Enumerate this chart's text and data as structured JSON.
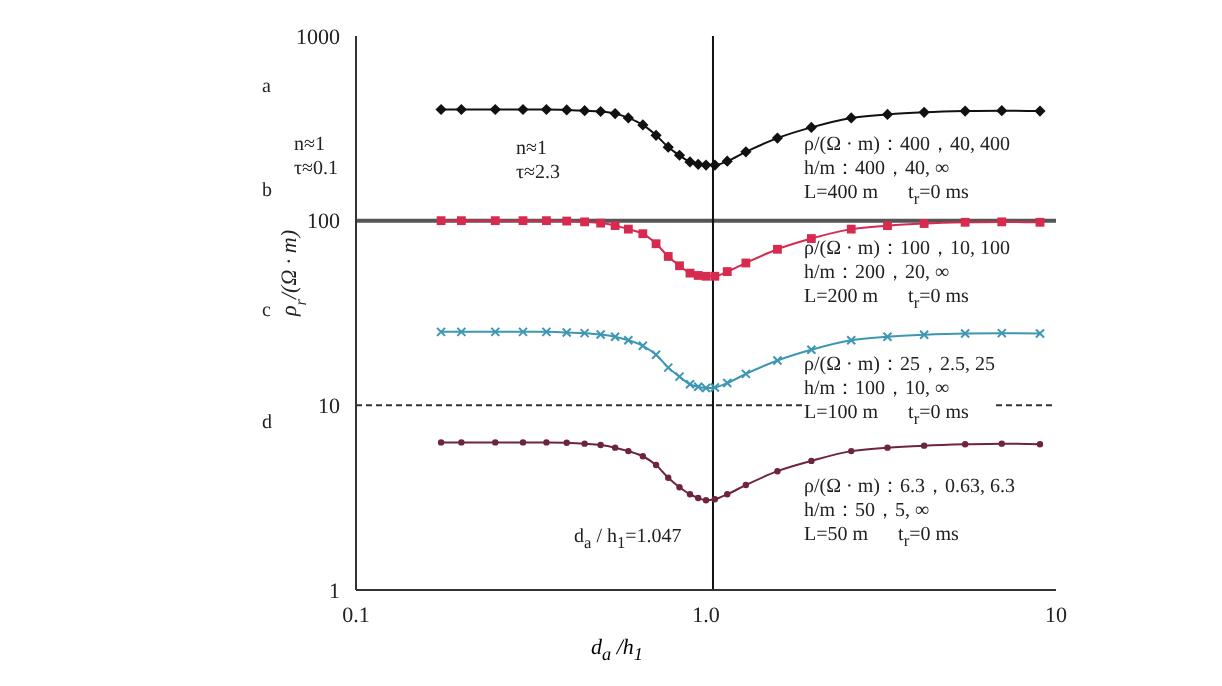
{
  "chart_data": {
    "type": "line",
    "xlabel": "d$_{a}$ /h$_{1}$",
    "ylabel": "ρ$_{r}$/(Ω · m)",
    "log": "xy",
    "xlim": [
      0.1,
      10
    ],
    "xticks": [
      0.1,
      {
        "value": 1,
        "label": "1.0"
      },
      10
    ],
    "ylim": [
      1,
      1000
    ],
    "yticks": [
      1,
      10,
      100,
      1000
    ],
    "legend": false,
    "x": [
      0.175,
      0.2,
      0.25,
      0.3,
      0.35,
      0.4,
      0.45,
      0.5,
      0.55,
      0.6,
      0.66,
      0.72,
      0.78,
      0.84,
      0.9,
      0.95,
      1.0,
      1.06,
      1.15,
      1.3,
      1.6,
      2.0,
      2.6,
      3.3,
      4.2,
      5.5,
      7,
      9
    ],
    "series": [
      {
        "color": "#111111",
        "marker": "diamond",
        "values": [
          400,
          400,
          400,
          400,
          400,
          398,
          394,
          390,
          380,
          360,
          330,
          290,
          250,
          226,
          208,
          202,
          200,
          200,
          210,
          236,
          280,
          320,
          360,
          376,
          386,
          392,
          394,
          392
        ]
      },
      {
        "color": "#d62a4e",
        "marker": "square",
        "values": [
          100,
          100,
          100,
          100,
          100,
          99.5,
          98.5,
          97,
          94,
          90,
          85,
          75,
          64,
          57,
          52,
          50.5,
          50,
          50,
          53,
          59,
          70,
          80,
          90,
          94,
          96.5,
          98,
          98.5,
          98
        ]
      },
      {
        "color": "#3d97b3",
        "marker": "cross",
        "values": [
          25,
          25,
          25,
          25,
          25,
          24.8,
          24.6,
          24.2,
          23.5,
          22.5,
          21,
          18.8,
          16,
          14.3,
          13,
          12.6,
          12.4,
          12.5,
          13.2,
          14.8,
          17.5,
          20,
          22.5,
          23.5,
          24.1,
          24.5,
          24.6,
          24.5
        ]
      },
      {
        "color": "#6e2440",
        "marker": "circle",
        "values": [
          6.3,
          6.3,
          6.3,
          6.3,
          6.3,
          6.27,
          6.2,
          6.1,
          5.9,
          5.65,
          5.3,
          4.75,
          4.05,
          3.6,
          3.3,
          3.15,
          3.06,
          3.1,
          3.3,
          3.7,
          4.4,
          5.0,
          5.65,
          5.9,
          6.05,
          6.15,
          6.2,
          6.15
        ]
      }
    ],
    "ref_lines": [
      {
        "axis": "y",
        "value": 100,
        "color": "#555555",
        "line_style": "solid"
      },
      {
        "axis": "y",
        "value": 10,
        "color": "#333333",
        "line_style": "dashed"
      },
      {
        "axis": "x",
        "value": 1.047,
        "color": "#111111",
        "line_style": "solid"
      }
    ],
    "annotations": [
      "a",
      "b",
      "c",
      "d",
      "n≈1\nτ≈0.1",
      "n≈1\nτ≈2.3",
      "ρ/(Ω · m)：400，40, 400\nh/m：400，40, ∞\nL=400 m      t$_{r}$=0 ms",
      "ρ/(Ω · m)：100，10, 100\nh/m：200，20, ∞\nL=200 m      t$_{r}$=0 ms",
      "ρ/(Ω · m)：25，2.5, 25\nh/m：100，10, ∞\nL=100 m      t$_{r}$=0 ms",
      "ρ/(Ω · m)：6.3，0.63, 6.3\nh/m：50，5, ∞\nL=50 m      t$_{r}$=0 ms",
      "d$_{a}$ / h$_{1}$=1.047"
    ]
  }
}
